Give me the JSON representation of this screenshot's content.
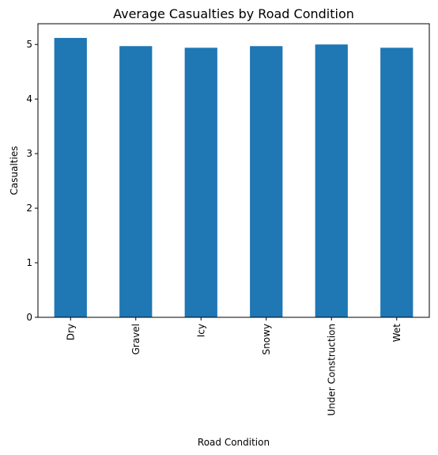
{
  "chart_data": {
    "type": "bar",
    "title": "Average Casualties by Road Condition",
    "xlabel": "Road Condition",
    "ylabel": "Casualties",
    "categories": [
      "Dry",
      "Gravel",
      "Icy",
      "Snowy",
      "Under Construction",
      "Wet"
    ],
    "values": [
      5.12,
      4.97,
      4.94,
      4.97,
      5.0,
      4.94
    ],
    "ylim": [
      0,
      5.38
    ],
    "yticks": [
      0,
      1,
      2,
      3,
      4,
      5
    ],
    "grid": false,
    "legend": "none",
    "colors": {
      "bar": "#1f77b4"
    }
  }
}
